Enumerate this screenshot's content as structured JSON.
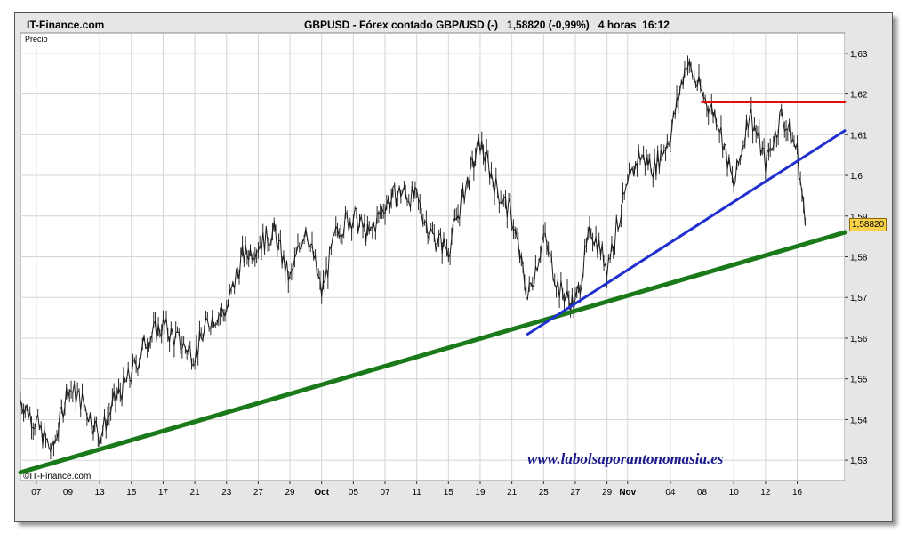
{
  "header": {
    "site": "IT-Finance.com",
    "symbol": "GBPUSD",
    "description": "Fórex contado GBP/USD (-)",
    "last_price": "1,58820",
    "change": "(-0,99%)",
    "timeframe": "4 horas",
    "time": "16:12"
  },
  "series_label": "Precio",
  "copyright": "©IT-Finance.com",
  "watermark": "www.labolsaporantonomasia.es",
  "price_tag": "1,58820",
  "colors": {
    "candle": "#1a1a1a",
    "support_line": "#1a7a1a",
    "trend_line": "#1f2fd0",
    "resistance_line": "#e01010",
    "price_tag": "#f7d24a"
  },
  "chart_data": {
    "type": "line",
    "title": "GBPUSD - Fórex contado GBP/USD (-)",
    "ylabel": "Precio",
    "ylim": [
      1.525,
      1.635
    ],
    "y_ticks": [
      1.53,
      1.54,
      1.55,
      1.56,
      1.57,
      1.58,
      1.59,
      1.6,
      1.61,
      1.62,
      1.63
    ],
    "y_tick_labels": [
      "1,53",
      "1,54",
      "1,55",
      "1,56",
      "1,57",
      "1,58",
      "1,59",
      "1,6",
      "1,61",
      "1,62",
      "1,63"
    ],
    "x_ticks": [
      {
        "day": 1,
        "label": "07"
      },
      {
        "day": 3,
        "label": "09"
      },
      {
        "day": 5,
        "label": "13"
      },
      {
        "day": 7,
        "label": "15"
      },
      {
        "day": 9,
        "label": "17"
      },
      {
        "day": 11,
        "label": "21"
      },
      {
        "day": 13,
        "label": "23"
      },
      {
        "day": 15,
        "label": "27"
      },
      {
        "day": 17,
        "label": "29"
      },
      {
        "day": 19,
        "label": "Oct"
      },
      {
        "day": 21,
        "label": "05"
      },
      {
        "day": 23,
        "label": "07"
      },
      {
        "day": 25,
        "label": "11"
      },
      {
        "day": 27,
        "label": "15"
      },
      {
        "day": 29,
        "label": "19"
      },
      {
        "day": 31,
        "label": "21"
      },
      {
        "day": 33,
        "label": "25"
      },
      {
        "day": 35,
        "label": "27"
      },
      {
        "day": 37,
        "label": "29"
      },
      {
        "day": 38.3,
        "label": "Nov"
      },
      {
        "day": 41,
        "label": "04"
      },
      {
        "day": 43,
        "label": "08"
      },
      {
        "day": 45,
        "label": "10"
      },
      {
        "day": 47,
        "label": "12"
      },
      {
        "day": 49,
        "label": "16"
      }
    ],
    "xlim": [
      0,
      52
    ],
    "series": [
      {
        "name": "Precio",
        "x": [
          0,
          1,
          2,
          3,
          4,
          5,
          6,
          7,
          8,
          9,
          10,
          11,
          12,
          13,
          14,
          15,
          16,
          17,
          18,
          19,
          20,
          21,
          22,
          23,
          24,
          25,
          26,
          27,
          28,
          29,
          30,
          31,
          32,
          33,
          34,
          35,
          36,
          37,
          38,
          39,
          40,
          41,
          42,
          43,
          44,
          45,
          46,
          47,
          48,
          49,
          49.5
        ],
        "values": [
          1.545,
          1.539,
          1.532,
          1.548,
          1.544,
          1.536,
          1.545,
          1.551,
          1.56,
          1.563,
          1.559,
          1.556,
          1.565,
          1.567,
          1.58,
          1.583,
          1.586,
          1.574,
          1.588,
          1.571,
          1.587,
          1.59,
          1.585,
          1.593,
          1.596,
          1.594,
          1.585,
          1.582,
          1.596,
          1.608,
          1.597,
          1.59,
          1.57,
          1.585,
          1.572,
          1.568,
          1.587,
          1.578,
          1.593,
          1.605,
          1.602,
          1.61,
          1.628,
          1.62,
          1.614,
          1.597,
          1.616,
          1.603,
          1.615,
          1.606,
          1.588
        ]
      }
    ],
    "trendlines": [
      {
        "name": "support",
        "x": [
          0,
          52
        ],
        "y": [
          1.527,
          1.586
        ]
      },
      {
        "name": "trend",
        "x": [
          32,
          52
        ],
        "y": [
          1.561,
          1.611
        ]
      },
      {
        "name": "resistance",
        "x": [
          43,
          52
        ],
        "y": [
          1.618,
          1.618
        ]
      }
    ],
    "grid": true,
    "legend": "none"
  }
}
